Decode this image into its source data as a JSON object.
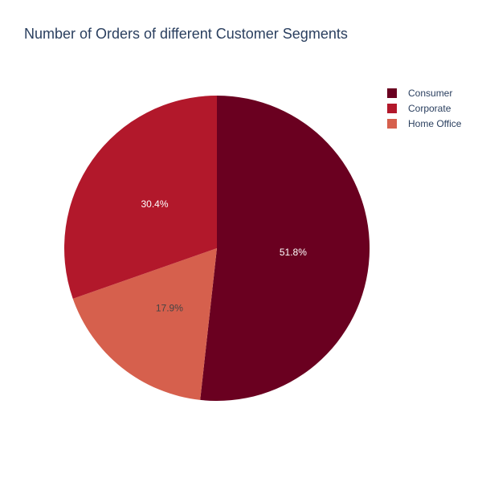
{
  "chart_data": {
    "type": "pie",
    "title": "Number of Orders of different Customer Segments",
    "legend_position": "top-right",
    "slices": [
      {
        "label": "Consumer",
        "percent": 51.8,
        "percent_label": "51.8%",
        "color": "#6a0020",
        "text_color": "#ffffff"
      },
      {
        "label": "Home Office",
        "percent": 17.9,
        "percent_label": "17.9%",
        "color": "#d6604d",
        "text_color": "#444444"
      },
      {
        "label": "Corporate",
        "percent": 30.4,
        "percent_label": "30.4%",
        "color": "#b2182b",
        "text_color": "#ffffff"
      }
    ],
    "legend": [
      {
        "label": "Consumer",
        "color": "#6a0020"
      },
      {
        "label": "Corporate",
        "color": "#b2182b"
      },
      {
        "label": "Home Office",
        "color": "#d6604d"
      }
    ]
  }
}
